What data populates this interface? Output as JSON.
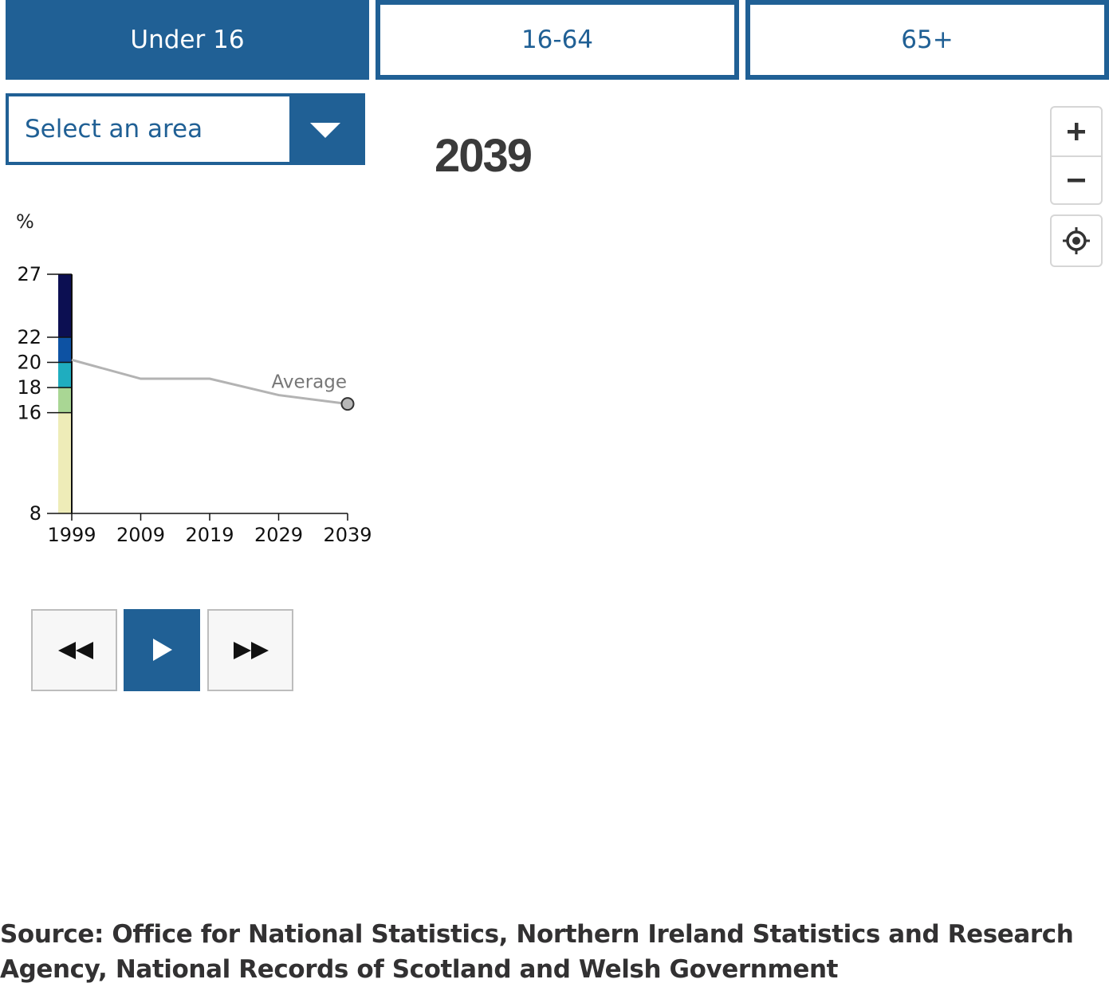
{
  "tabs": [
    {
      "label": "Under 16",
      "active": true
    },
    {
      "label": "16-64",
      "active": false
    },
    {
      "label": "65+",
      "active": false
    }
  ],
  "area_select": {
    "label": "Select an area"
  },
  "year_display": "2039",
  "map_controls": {
    "zoom_in_icon": "plus-icon",
    "zoom_out_icon": "minus-icon",
    "locate_icon": "crosshair-icon"
  },
  "playback": {
    "back_icon": "rewind-icon",
    "play_icon": "play-icon",
    "forward_icon": "fast-forward-icon"
  },
  "colors": {
    "accent": "#206095",
    "band_1": "#eeecb8",
    "band_2": "#a9d694",
    "band_3": "#1fadbf",
    "band_4": "#0d52a3",
    "band_5": "#0c0f52",
    "average_line": "#b3b3b3"
  },
  "chart_data": {
    "type": "line",
    "ylabel": "%",
    "y_ticks": [
      8,
      16,
      18,
      20,
      22,
      27
    ],
    "ylim": [
      8,
      27
    ],
    "x_ticks": [
      "1999",
      "2009",
      "2019",
      "2029",
      "2039"
    ],
    "xlim": [
      1999,
      2039
    ],
    "legend_bands": [
      {
        "from": 8,
        "to": 16
      },
      {
        "from": 16,
        "to": 18
      },
      {
        "from": 18,
        "to": 20
      },
      {
        "from": 20,
        "to": 22
      },
      {
        "from": 22,
        "to": 27
      }
    ],
    "series": [
      {
        "name": "Average",
        "x": [
          1999,
          2009,
          2019,
          2029,
          2039
        ],
        "values": [
          20.2,
          18.7,
          18.7,
          17.4,
          16.7
        ]
      }
    ],
    "highlight_point": {
      "x": 2039,
      "y": 16.7
    },
    "grid": false
  },
  "source_text": "Source: Office for National Statistics, Northern Ireland Statistics and Research Agency, National Records of Scotland and Welsh Government"
}
